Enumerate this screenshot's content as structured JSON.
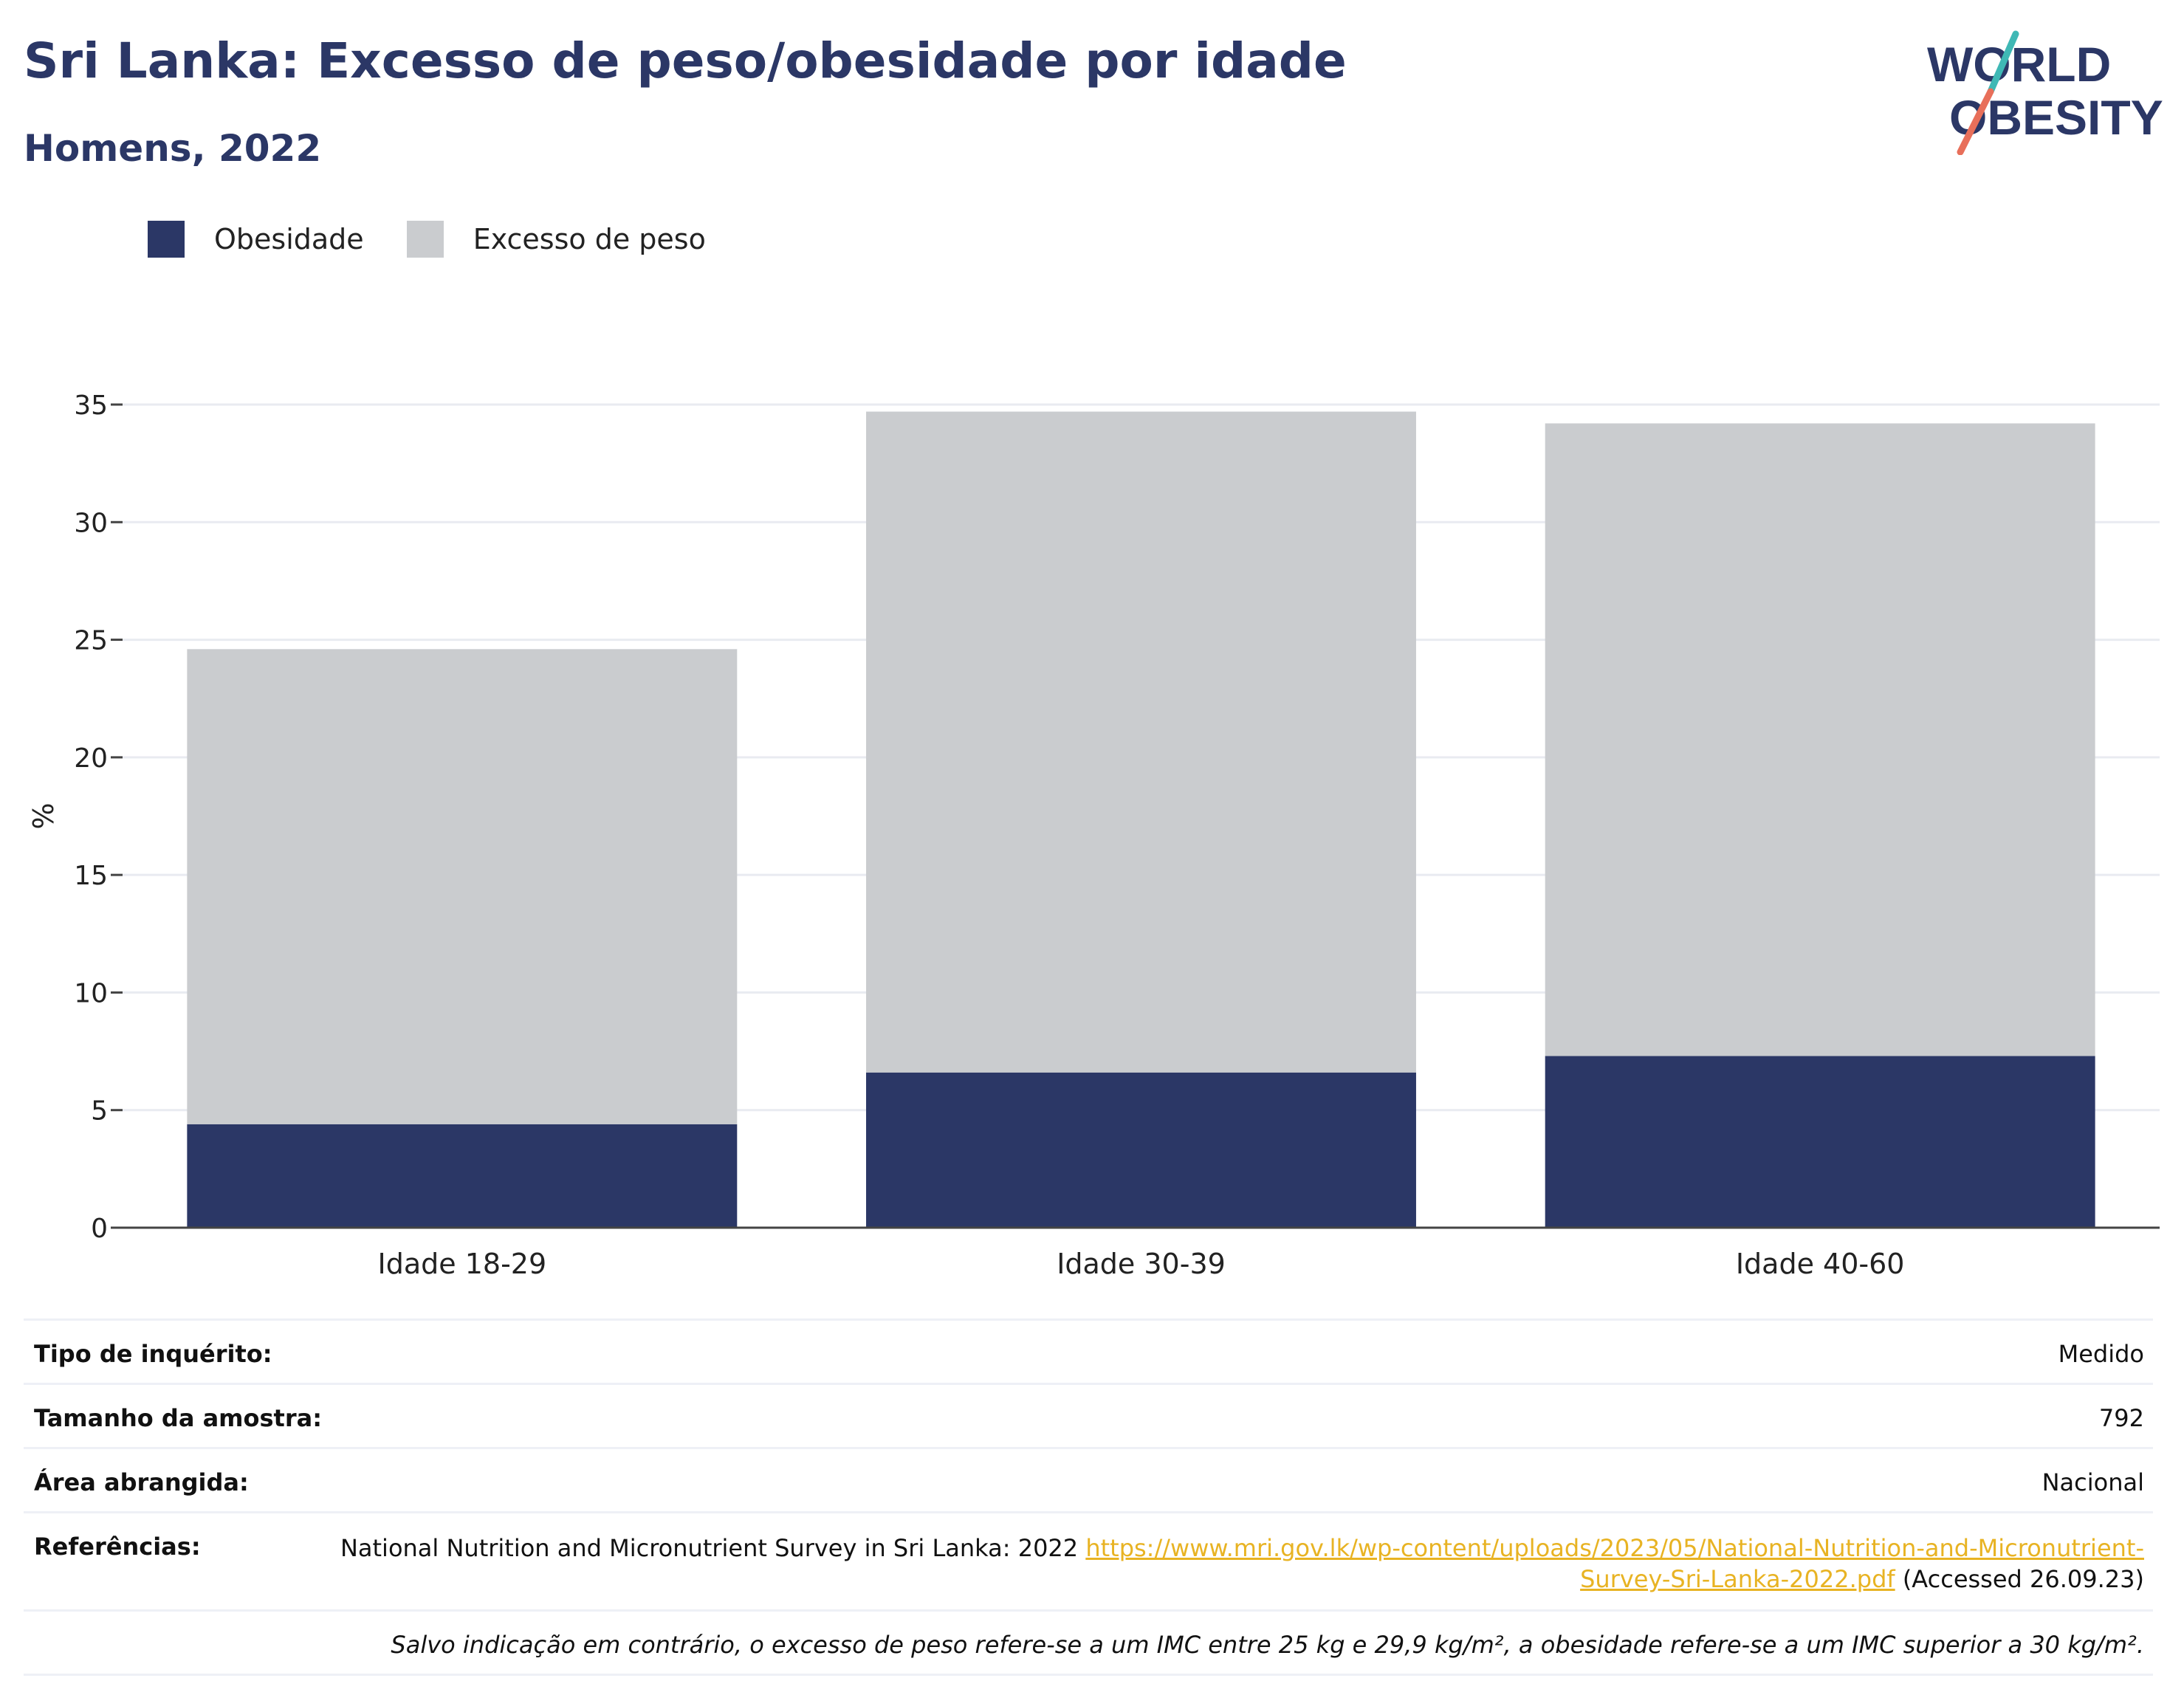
{
  "header": {
    "title": "Sri Lanka: Excesso de peso/obesidade por idade",
    "subtitle": "Homens, 2022"
  },
  "logo": {
    "line1": "WORLD",
    "line2": "OBESITY"
  },
  "colors": {
    "obesity": "#2b3766",
    "overweight": "#cacccf",
    "title": "#2b3766",
    "link": "#e8b323",
    "logo_teal": "#3fb8b5",
    "logo_coral": "#e86f5a"
  },
  "chart_data": {
    "type": "bar",
    "stacked": true,
    "categories": [
      "Idade 18-29",
      "Idade 30-39",
      "Idade 40-60"
    ],
    "series": [
      {
        "name": "Obesidade",
        "values": [
          4.4,
          6.6,
          7.3
        ]
      },
      {
        "name": "Excesso de peso",
        "values": [
          20.2,
          28.1,
          26.9
        ]
      }
    ],
    "ylabel": "%",
    "ylim": [
      0,
      35
    ],
    "yticks": [
      0,
      5,
      10,
      15,
      20,
      25,
      30,
      35
    ],
    "grid": true,
    "legend": "top-left"
  },
  "info": {
    "survey_type_label": "Tipo de inquérito:",
    "survey_type_value": "Medido",
    "sample_size_label": "Tamanho da amostra:",
    "sample_size_value": "792",
    "area_label": "Área abrangida:",
    "area_value": "Nacional",
    "references_label": "Referências:",
    "references_text": "National Nutrition and Micronutrient Survey in Sri Lanka: 2022",
    "references_link": "https://www.mri.gov.lk/wp-content/uploads/2023/05/National-Nutrition-and-Micronutrient-Survey-Sri-Lanka-2022.pdf",
    "references_accessed": "(Accessed 26.09.23)",
    "note": "Salvo indicação em contrário, o excesso de peso refere-se a um IMC entre 25 kg e 29,9 kg/m², a obesidade refere-se a um IMC superior a 30 kg/m²."
  }
}
